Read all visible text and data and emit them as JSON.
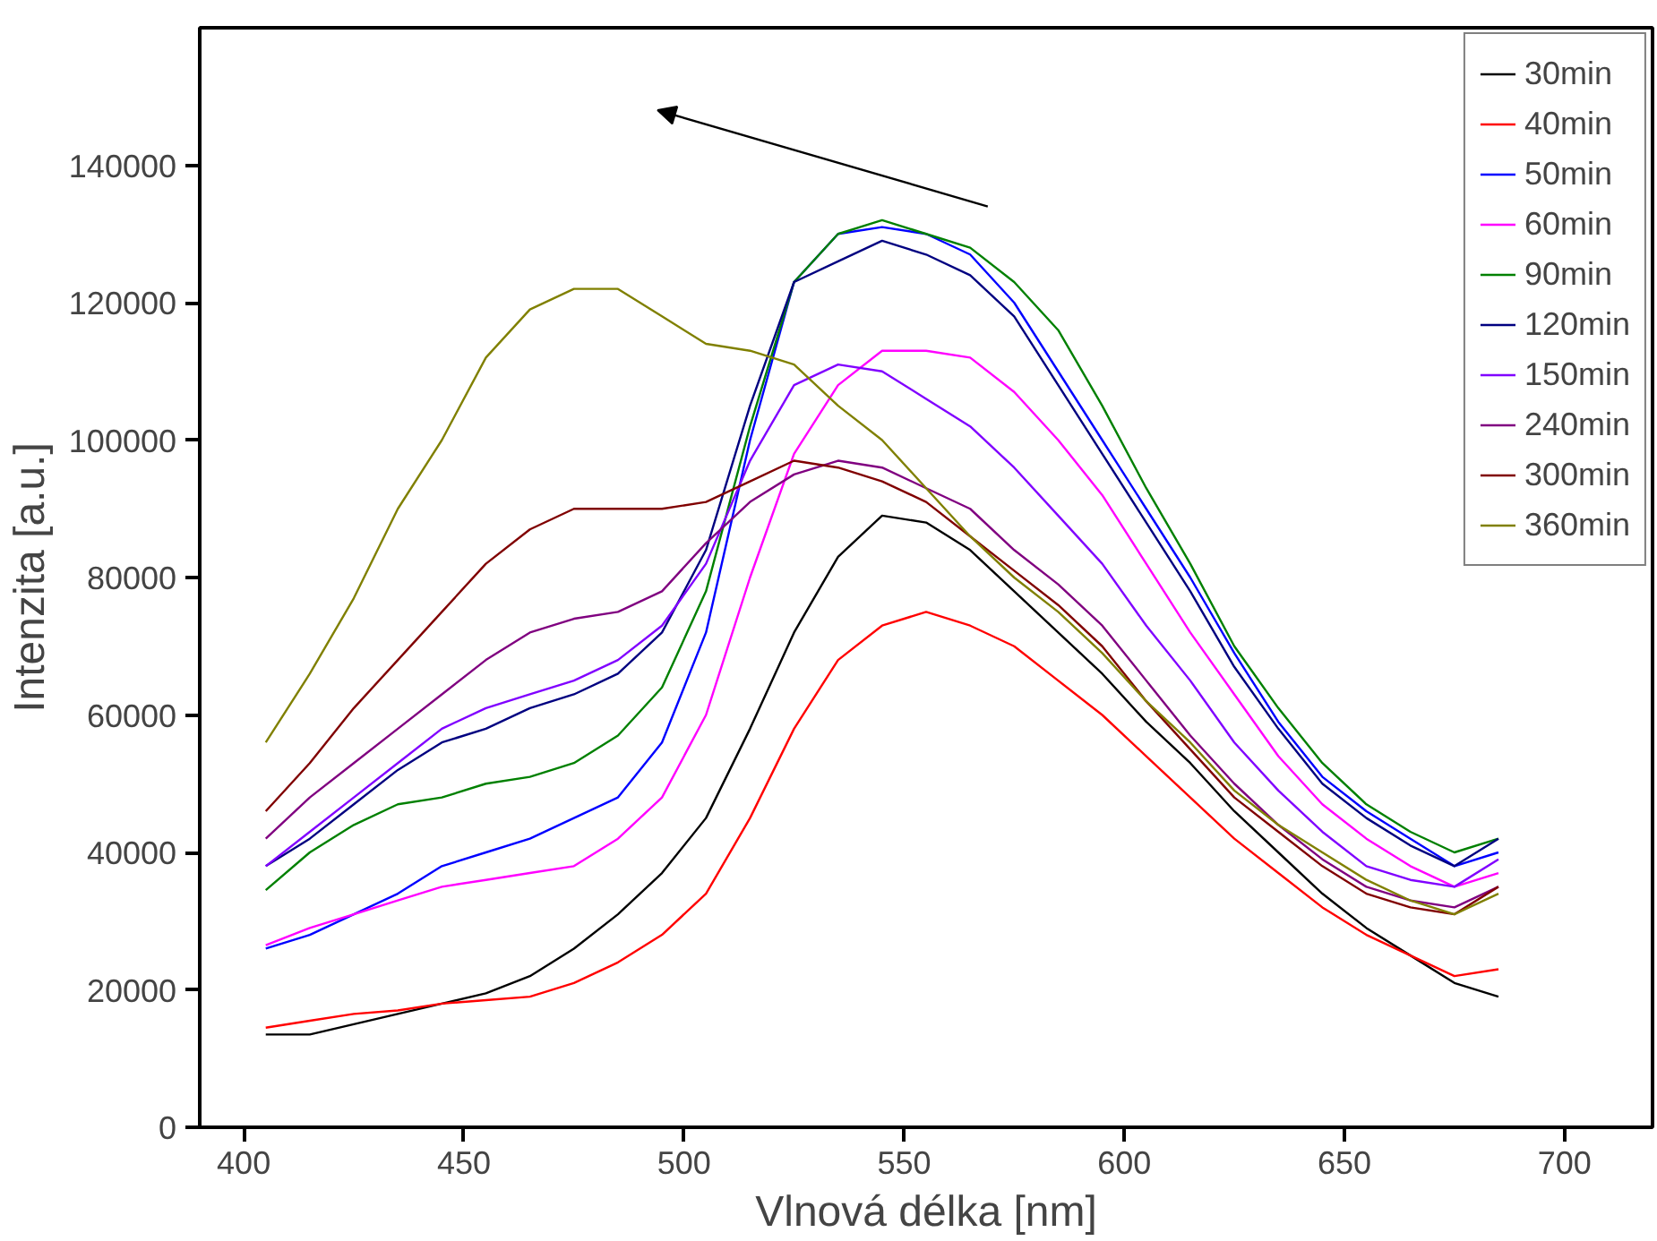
{
  "chart_data": {
    "type": "line",
    "xlabel": "Vlnová délka [nm]",
    "ylabel": "Intenzita [a.u.]",
    "x": [
      405,
      415,
      425,
      435,
      445,
      455,
      465,
      475,
      485,
      495,
      505,
      515,
      525,
      535,
      545,
      555,
      565,
      575,
      585,
      595,
      605,
      615,
      625,
      635,
      645,
      655,
      665,
      675,
      685
    ],
    "xlim": [
      390,
      720
    ],
    "xticks": [
      400,
      450,
      500,
      550,
      600,
      650,
      700
    ],
    "ylim": [
      0,
      160000
    ],
    "yticks": [
      0,
      20000,
      40000,
      60000,
      80000,
      100000,
      120000,
      140000
    ],
    "grid": false,
    "legend": "top right",
    "marker": "none",
    "line_style": "solid",
    "series": [
      {
        "name": "30min",
        "color": "#000000",
        "values": [
          13500,
          13500,
          15000,
          16500,
          18000,
          19500,
          22000,
          26000,
          31000,
          37000,
          45000,
          58000,
          72000,
          83000,
          89000,
          88000,
          84000,
          78000,
          72000,
          66000,
          59000,
          53000,
          46000,
          40000,
          34000,
          29000,
          25000,
          21000,
          19000
        ]
      },
      {
        "name": "40min",
        "color": "#ff0000",
        "values": [
          14500,
          15500,
          16500,
          17000,
          18000,
          18500,
          19000,
          21000,
          24000,
          28000,
          34000,
          45000,
          58000,
          68000,
          73000,
          75000,
          73000,
          70000,
          65000,
          60000,
          54000,
          48000,
          42000,
          37000,
          32000,
          28000,
          25000,
          22000,
          23000
        ]
      },
      {
        "name": "50min",
        "color": "#0000ff",
        "values": [
          26000,
          28000,
          31000,
          34000,
          38000,
          40000,
          42000,
          45000,
          48000,
          56000,
          72000,
          100000,
          123000,
          130000,
          131000,
          130000,
          127000,
          120000,
          110000,
          100000,
          90000,
          80000,
          69000,
          59000,
          51000,
          46000,
          42000,
          38000,
          40000
        ]
      },
      {
        "name": "60min",
        "color": "#ff00ff",
        "values": [
          26500,
          29000,
          31000,
          33000,
          35000,
          36000,
          37000,
          38000,
          42000,
          48000,
          60000,
          80000,
          98000,
          108000,
          113000,
          113000,
          112000,
          107000,
          100000,
          92000,
          82000,
          72000,
          63000,
          54000,
          47000,
          42000,
          38000,
          35000,
          37000
        ]
      },
      {
        "name": "90min",
        "color": "#008000",
        "values": [
          34500,
          40000,
          44000,
          47000,
          48000,
          50000,
          51000,
          53000,
          57000,
          64000,
          78000,
          102000,
          123000,
          130000,
          132000,
          130000,
          128000,
          123000,
          116000,
          105000,
          93000,
          82000,
          70000,
          61000,
          53000,
          47000,
          43000,
          40000,
          42000
        ]
      },
      {
        "name": "120min",
        "color": "#000080",
        "values": [
          38000,
          42000,
          47000,
          52000,
          56000,
          58000,
          61000,
          63000,
          66000,
          72000,
          84000,
          105000,
          123000,
          126000,
          129000,
          127000,
          124000,
          118000,
          108000,
          98000,
          88000,
          78000,
          67000,
          58000,
          50000,
          45000,
          41000,
          38000,
          42000
        ]
      },
      {
        "name": "150min",
        "color": "#8000ff",
        "values": [
          38000,
          43000,
          48000,
          53000,
          58000,
          61000,
          63000,
          65000,
          68000,
          73000,
          82000,
          97000,
          108000,
          111000,
          110000,
          106000,
          102000,
          96000,
          89000,
          82000,
          73000,
          65000,
          56000,
          49000,
          43000,
          38000,
          36000,
          35000,
          39000
        ]
      },
      {
        "name": "240min",
        "color": "#800080",
        "values": [
          42000,
          48000,
          53000,
          58000,
          63000,
          68000,
          72000,
          74000,
          75000,
          78000,
          85000,
          91000,
          95000,
          97000,
          96000,
          93000,
          90000,
          84000,
          79000,
          73000,
          65000,
          57000,
          50000,
          44000,
          39000,
          35000,
          33000,
          32000,
          35000
        ]
      },
      {
        "name": "300min",
        "color": "#800000",
        "values": [
          46000,
          53000,
          61000,
          68000,
          75000,
          82000,
          87000,
          90000,
          90000,
          90000,
          91000,
          94000,
          97000,
          96000,
          94000,
          91000,
          86000,
          81000,
          76000,
          70000,
          62000,
          55000,
          48000,
          43000,
          38000,
          34000,
          32000,
          31000,
          35000
        ]
      },
      {
        "name": "360min",
        "color": "#808000",
        "values": [
          56000,
          66000,
          77000,
          90000,
          100000,
          112000,
          119000,
          122000,
          122000,
          118000,
          114000,
          113000,
          111000,
          105000,
          100000,
          93000,
          86000,
          80000,
          75000,
          69000,
          62000,
          56000,
          49000,
          44000,
          40000,
          36000,
          33000,
          31000,
          34000
        ]
      }
    ]
  }
}
